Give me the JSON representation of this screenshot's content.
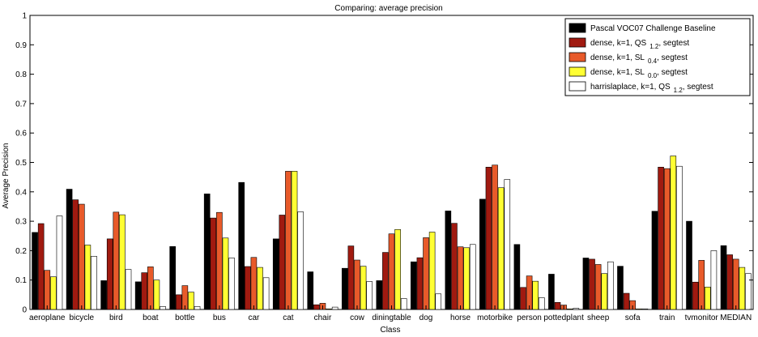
{
  "chart_data": {
    "type": "bar",
    "title": "Comparing: average precision",
    "xlabel": "Class",
    "ylabel": "Average Precision",
    "ylim": [
      0,
      1
    ],
    "yticks": [
      "0",
      "0.1",
      "0.2",
      "0.3",
      "0.4",
      "0.5",
      "0.6",
      "0.7",
      "0.8",
      "0.9",
      "1"
    ],
    "grid": false,
    "legend_position": "top-right",
    "categories": [
      "aeroplane",
      "bicycle",
      "bird",
      "boat",
      "bottle",
      "bus",
      "car",
      "cat",
      "chair",
      "cow",
      "diningtable",
      "dog",
      "horse",
      "motorbike",
      "person",
      "pottedplant",
      "sheep",
      "sofa",
      "train",
      "tvmonitor",
      "MEDIAN"
    ],
    "series": [
      {
        "name": "Pascal VOC07 Challenge Baseline",
        "color": "#000000",
        "values": [
          0.262,
          0.409,
          0.098,
          0.094,
          0.214,
          0.393,
          0.432,
          0.24,
          0.128,
          0.14,
          0.098,
          0.162,
          0.335,
          0.375,
          0.221,
          0.12,
          0.175,
          0.147,
          0.334,
          0.3,
          0.217
        ]
      },
      {
        "name": "dense, k=1, QS 1.2, segtest",
        "legend_parts": {
          "main": "dense, k=1, QS",
          "sub": "1.2",
          "tail": ", segtest"
        },
        "color": "#a01a10",
        "values": [
          0.292,
          0.373,
          0.24,
          0.125,
          0.05,
          0.311,
          0.146,
          0.321,
          0.016,
          0.216,
          0.194,
          0.176,
          0.293,
          0.484,
          0.075,
          0.024,
          0.171,
          0.055,
          0.484,
          0.093,
          0.186
        ]
      },
      {
        "name": "dense, k=1, SL 0.4, segtest",
        "legend_parts": {
          "main": "dense, k=1, SL",
          "sub": "0.4",
          "tail": ", segtest"
        },
        "color": "#e85a2a",
        "values": [
          0.133,
          0.358,
          0.331,
          0.145,
          0.081,
          0.33,
          0.177,
          0.47,
          0.021,
          0.168,
          0.257,
          0.244,
          0.213,
          0.491,
          0.114,
          0.015,
          0.153,
          0.03,
          0.479,
          0.167,
          0.171
        ]
      },
      {
        "name": "dense, k=1, SL 0.0, segtest",
        "legend_parts": {
          "main": "dense, k=1, SL",
          "sub": "0.0",
          "tail": ", segtest"
        },
        "color": "#ffff33",
        "values": [
          0.111,
          0.219,
          0.322,
          0.1,
          0.059,
          0.243,
          0.143,
          0.47,
          0.002,
          0.147,
          0.272,
          0.263,
          0.21,
          0.414,
          0.096,
          0.002,
          0.122,
          0.002,
          0.522,
          0.076,
          0.143
        ]
      },
      {
        "name": "harrislaplace, k=1, QS 1.2, segtest",
        "legend_parts": {
          "main": "harrislaplace, k=1, QS",
          "sub": "1.2",
          "tail": ", segtest"
        },
        "color": "#ffffff",
        "values": [
          0.318,
          0.181,
          0.136,
          0.01,
          0.01,
          0.175,
          0.108,
          0.332,
          0.008,
          0.095,
          0.037,
          0.053,
          0.221,
          0.442,
          0.04,
          0.004,
          0.162,
          0.002,
          0.487,
          0.2,
          0.122
        ]
      }
    ]
  }
}
